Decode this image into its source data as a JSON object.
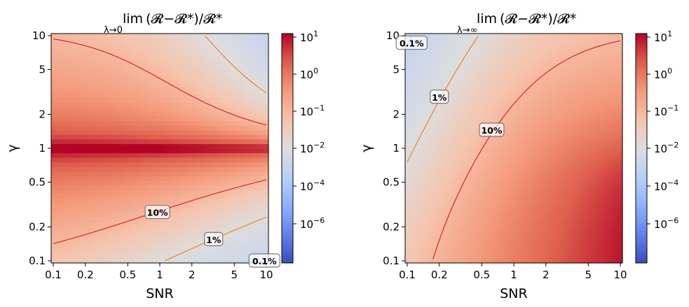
{
  "chart_data": [
    {
      "type": "heatmap",
      "title": {
        "lim": "lim",
        "expr": "(𝓡−𝓡*)/𝓡*",
        "subscript": "λ→0"
      },
      "xlabel": "SNR",
      "ylabel": "γ",
      "xscale": "log",
      "yscale": "log",
      "xlim": [
        0.1,
        10
      ],
      "ylim": [
        0.1,
        10
      ],
      "xticks": [
        "0.1",
        "0.2",
        "0.5",
        "1",
        "2",
        "5",
        "10"
      ],
      "yticks": [
        "0.1",
        "0.2",
        "0.5",
        "1",
        "2",
        "5",
        "10"
      ],
      "colormap": "coolwarm",
      "colorbar": {
        "scale": "log",
        "vmin": 1e-08,
        "vcenter": 0.01,
        "vmax": 12,
        "ticks": [
          {
            "base": "10",
            "exp": "1"
          },
          {
            "base": "10",
            "exp": "0"
          },
          {
            "base": "10",
            "exp": "−1"
          },
          {
            "base": "10",
            "exp": "−2"
          },
          {
            "base": "10",
            "exp": "−4"
          },
          {
            "base": "10",
            "exp": "−6"
          }
        ]
      },
      "contours": [
        {
          "level": 0.1,
          "label": "10%",
          "color": "#d62728"
        },
        {
          "level": 0.01,
          "label": "1%",
          "color": "#ff7f0e"
        },
        {
          "level": 0.001,
          "label": "0.1%",
          "color": "#8c8c8c"
        }
      ],
      "grid": false
    },
    {
      "type": "heatmap",
      "title": {
        "lim": "lim",
        "expr": "(𝓡−𝓡*)/𝓡*",
        "subscript": "λ→∞"
      },
      "xlabel": "SNR",
      "ylabel": "γ",
      "xscale": "log",
      "yscale": "log",
      "xlim": [
        0.1,
        10
      ],
      "ylim": [
        0.1,
        10
      ],
      "xticks": [
        "0.1",
        "0.2",
        "0.5",
        "1",
        "2",
        "5",
        "10"
      ],
      "yticks": [
        "0.1",
        "0.2",
        "0.5",
        "1",
        "2",
        "5",
        "10"
      ],
      "colormap": "coolwarm",
      "colorbar": {
        "scale": "log",
        "vmin": 1e-08,
        "vcenter": 0.01,
        "vmax": 12,
        "ticks": [
          {
            "base": "10",
            "exp": "1"
          },
          {
            "base": "10",
            "exp": "0"
          },
          {
            "base": "10",
            "exp": "−1"
          },
          {
            "base": "10",
            "exp": "−2"
          },
          {
            "base": "10",
            "exp": "−4"
          },
          {
            "base": "10",
            "exp": "−6"
          }
        ]
      },
      "contours": [
        {
          "level": 0.1,
          "label": "10%",
          "color": "#d62728"
        },
        {
          "level": 0.01,
          "label": "1%",
          "color": "#ff7f0e"
        },
        {
          "level": 0.001,
          "label": "0.1%",
          "color": "#8c8c8c"
        }
      ],
      "grid": false
    }
  ]
}
